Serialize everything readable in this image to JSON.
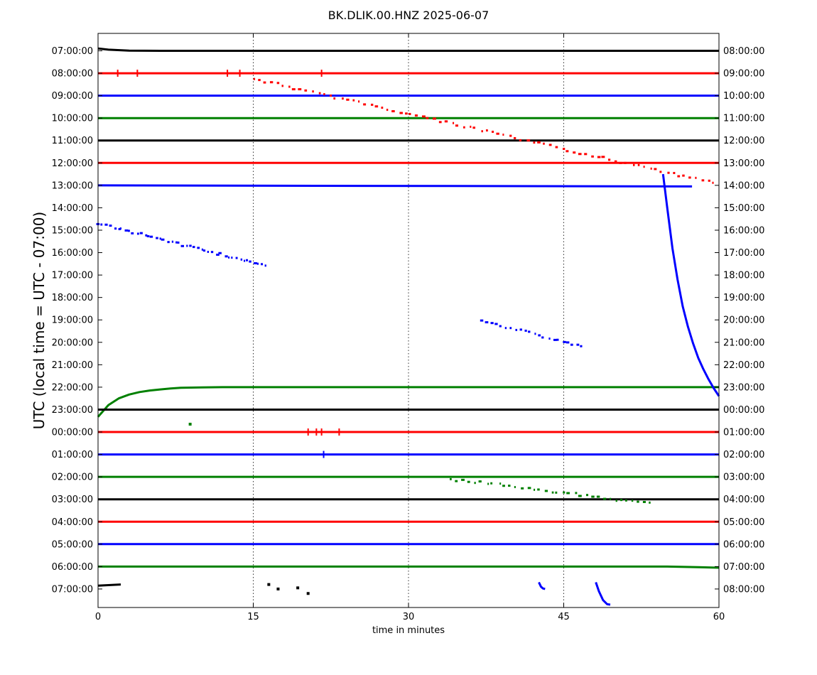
{
  "chart_data": {
    "type": "line",
    "title": "BK.DLIK.00.HNZ 2025-06-07",
    "xlabel": "time in minutes",
    "ylabel": "UTC (local time = UTC - 07:00)",
    "xlim": [
      0,
      60
    ],
    "x_ticks": [
      0,
      15,
      30,
      45,
      60
    ],
    "x_tick_labels": [
      "0",
      "15",
      "30",
      "45",
      "60"
    ],
    "grid": "vertical dotted lines at 15, 30, 45",
    "row_color_cycle": [
      "#000000",
      "#ff0000",
      "#0000ff",
      "#008000"
    ],
    "left_tick_labels": [
      "07:00:00",
      "08:00:00",
      "09:00:00",
      "10:00:00",
      "11:00:00",
      "12:00:00",
      "13:00:00",
      "14:00:00",
      "15:00:00",
      "16:00:00",
      "17:00:00",
      "18:00:00",
      "19:00:00",
      "20:00:00",
      "21:00:00",
      "22:00:00",
      "23:00:00",
      "00:00:00",
      "01:00:00",
      "02:00:00",
      "03:00:00",
      "04:00:00",
      "05:00:00",
      "06:00:00",
      "07:00:00"
    ],
    "right_tick_labels": [
      "08:00:00",
      "09:00:00",
      "10:00:00",
      "11:00:00",
      "12:00:00",
      "13:00:00",
      "14:00:00",
      "15:00:00",
      "16:00:00",
      "17:00:00",
      "18:00:00",
      "19:00:00",
      "20:00:00",
      "21:00:00",
      "22:00:00",
      "23:00:00",
      "00:00:00",
      "01:00:00",
      "02:00:00",
      "03:00:00",
      "04:00:00",
      "05:00:00",
      "06:00:00",
      "07:00:00",
      "08:00:00"
    ],
    "series": [
      {
        "row": 0,
        "color": "#000000",
        "points": [
          [
            0,
            0.1
          ],
          [
            1,
            0.05
          ],
          [
            3,
            0.01
          ],
          [
            6,
            0
          ],
          [
            60,
            0
          ]
        ]
      },
      {
        "row": 1,
        "color": "#ff0000",
        "points": [
          [
            0,
            0
          ],
          [
            60,
            0
          ]
        ]
      },
      {
        "row": 2,
        "color": "#0000ff",
        "points": [
          [
            0,
            0
          ],
          [
            60,
            0
          ]
        ]
      },
      {
        "row": 3,
        "color": "#008000",
        "points": [
          [
            0,
            0
          ],
          [
            60,
            0
          ]
        ]
      },
      {
        "row": 4,
        "color": "#000000",
        "points": [
          [
            0,
            0
          ],
          [
            60,
            0
          ]
        ]
      },
      {
        "row": 5,
        "color": "#ff0000",
        "points": [
          [
            0,
            0
          ],
          [
            60,
            0
          ]
        ]
      },
      {
        "row": 6,
        "color": "#0000ff",
        "points": [
          [
            0,
            0
          ],
          [
            57.4,
            -0.05
          ]
        ]
      },
      {
        "row": 15,
        "color": "#008000",
        "points": [
          [
            0,
            -1.32
          ],
          [
            1,
            -0.8
          ],
          [
            2,
            -0.5
          ],
          [
            3,
            -0.33
          ],
          [
            4,
            -0.22
          ],
          [
            5,
            -0.15
          ],
          [
            6,
            -0.1
          ],
          [
            7,
            -0.06
          ],
          [
            8,
            -0.03
          ],
          [
            10,
            -0.01
          ],
          [
            12,
            0
          ],
          [
            60,
            0
          ]
        ]
      },
      {
        "row": 16,
        "color": "#000000",
        "points": [
          [
            0,
            0
          ],
          [
            60,
            0
          ]
        ]
      },
      {
        "row": 17,
        "color": "#ff0000",
        "points": [
          [
            0,
            0
          ],
          [
            60,
            0
          ]
        ]
      },
      {
        "row": 18,
        "color": "#0000ff",
        "points": [
          [
            0,
            0
          ],
          [
            60,
            0
          ]
        ]
      },
      {
        "row": 19,
        "color": "#008000",
        "points": [
          [
            0,
            0
          ],
          [
            60,
            0
          ]
        ]
      },
      {
        "row": 20,
        "color": "#000000",
        "points": [
          [
            0,
            0
          ],
          [
            60,
            0
          ]
        ]
      },
      {
        "row": 21,
        "color": "#ff0000",
        "points": [
          [
            0,
            0
          ],
          [
            60,
            0
          ]
        ]
      },
      {
        "row": 22,
        "color": "#0000ff",
        "points": [
          [
            0,
            0
          ],
          [
            60,
            0
          ]
        ]
      },
      {
        "row": 23,
        "color": "#008000",
        "points": [
          [
            0,
            0
          ],
          [
            55,
            0
          ],
          [
            58,
            -0.03
          ],
          [
            60,
            -0.05
          ]
        ]
      },
      {
        "row": 24,
        "color": "#000000",
        "points": [
          [
            0,
            0.15
          ],
          [
            2.2,
            0.2
          ]
        ]
      },
      {
        "row": 24,
        "color": "#0000ff",
        "points": [
          [
            42.6,
            0.3
          ],
          [
            42.8,
            0.1
          ],
          [
            43,
            0.02
          ],
          [
            43.2,
            0
          ]
        ]
      },
      {
        "row": 24,
        "color": "#0000ff",
        "points": [
          [
            48.1,
            0.3
          ],
          [
            48.4,
            -0.1
          ],
          [
            48.8,
            -0.5
          ],
          [
            49.2,
            -0.68
          ],
          [
            49.5,
            -0.7
          ]
        ]
      },
      {
        "row": 15,
        "color": "#0000ff",
        "points": [
          [
            54.6,
            9.5
          ],
          [
            55,
            8.0
          ],
          [
            55.5,
            6.2
          ],
          [
            56,
            4.8
          ],
          [
            56.5,
            3.6
          ],
          [
            57,
            2.7
          ],
          [
            57.5,
            1.95
          ],
          [
            58,
            1.3
          ],
          [
            58.5,
            0.8
          ],
          [
            59,
            0.35
          ],
          [
            59.5,
            -0.05
          ],
          [
            60,
            -0.4
          ]
        ]
      }
    ],
    "scatter_clusters": [
      {
        "color": "#ff0000",
        "start": [
          15.1,
          1.25
        ],
        "end": [
          59.5,
          5.9
        ],
        "count": 80
      },
      {
        "color": "#0000ff",
        "start": [
          0.1,
          7.7
        ],
        "end": [
          16.3,
          9.6
        ],
        "count": 45
      },
      {
        "color": "#0000ff",
        "start": [
          37.1,
          12.05
        ],
        "end": [
          46.8,
          13.18
        ],
        "count": 22
      },
      {
        "color": "#008000",
        "start": [
          34.2,
          19.1
        ],
        "end": [
          53.4,
          20.2
        ],
        "count": 35
      }
    ],
    "spikes": [
      {
        "color": "#ff0000",
        "row": 1,
        "x": [
          1.9,
          3.8,
          12.5,
          13.7,
          21.6
        ]
      },
      {
        "color": "#0000ff",
        "row": 18,
        "x": [
          21.8
        ]
      },
      {
        "color": "#ff0000",
        "row": 17,
        "x": [
          20.3,
          21.1,
          21.6,
          23.3
        ]
      }
    ],
    "isolated_points": [
      {
        "color": "#008000",
        "x": 8.9,
        "y": 16.65
      },
      {
        "color": "#000000",
        "x": 16.5,
        "y": 23.8
      },
      {
        "color": "#000000",
        "x": 17.4,
        "y": 24.0
      },
      {
        "color": "#000000",
        "x": 19.3,
        "y": 23.95
      },
      {
        "color": "#000000",
        "x": 20.3,
        "y": 24.2
      }
    ]
  }
}
